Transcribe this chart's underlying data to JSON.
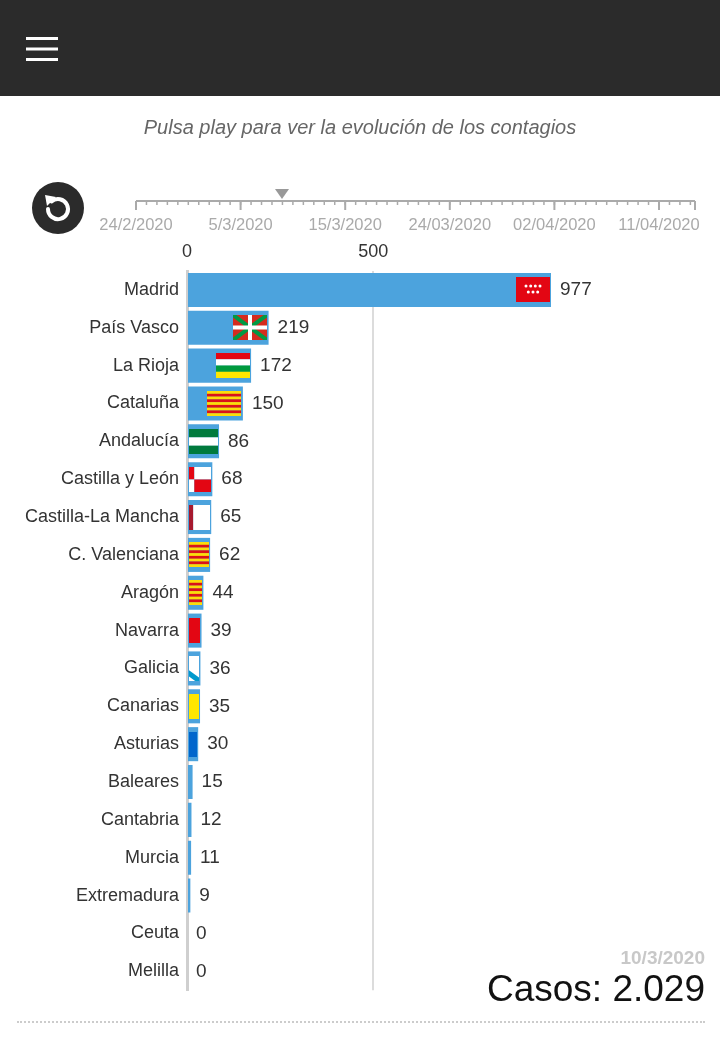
{
  "chart_data": {
    "type": "bar",
    "orientation": "horizontal",
    "subtitle": "Pulsa play para ver la evolución de los contagios",
    "categories": [
      "Madrid",
      "País Vasco",
      "La Rioja",
      "Cataluña",
      "Andalucía",
      "Castilla y León",
      "Castilla-La Mancha",
      "C. Valenciana",
      "Aragón",
      "Navarra",
      "Galicia",
      "Canarias",
      "Asturias",
      "Baleares",
      "Cantabria",
      "Murcia",
      "Extremadura",
      "Ceuta",
      "Melilla"
    ],
    "values": [
      977,
      219,
      172,
      150,
      86,
      68,
      65,
      62,
      44,
      39,
      36,
      35,
      30,
      15,
      12,
      11,
      9,
      0,
      0
    ],
    "color": "#4ca3dd",
    "xlim": [
      0,
      977
    ],
    "xticks": [
      0,
      500
    ],
    "grid": "x",
    "data_labels": true,
    "annotations": [
      "24/2/2020",
      "5/3/2020",
      "15/3/2020",
      "24/03/2020",
      "02/04/2020",
      "11/04/2020",
      "10/3/2020",
      "Casos: 2.029"
    ]
  }
}
